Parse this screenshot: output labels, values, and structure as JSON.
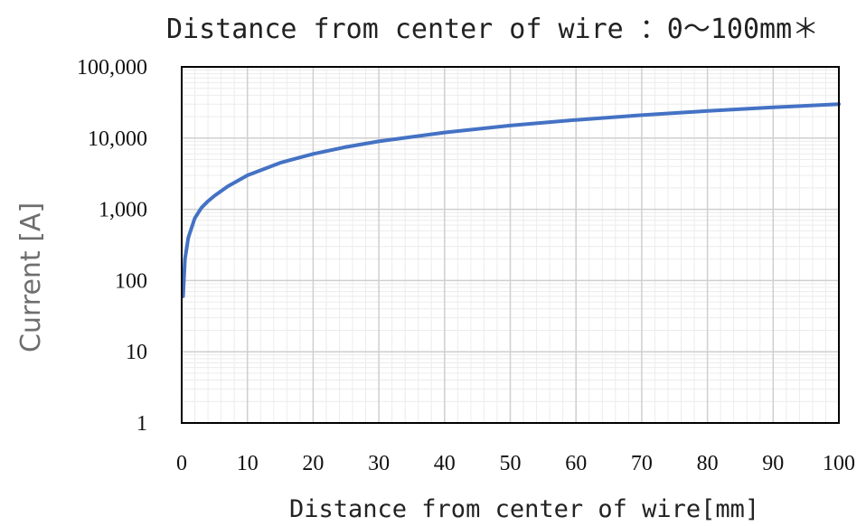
{
  "chart_data": {
    "type": "line",
    "title": "Distance from center of wire ：0〜100mm＊",
    "xlabel": "Distance from center of wire[mm]",
    "ylabel": "Current [A]",
    "xlim": [
      0,
      100
    ],
    "ylim": [
      1,
      100000
    ],
    "y_scale": "log",
    "grid": true,
    "x_ticks": [
      "0",
      "10",
      "20",
      "30",
      "40",
      "50",
      "60",
      "70",
      "80",
      "90",
      "100"
    ],
    "y_ticks": [
      "100,000",
      "10,000",
      "1,000",
      "100",
      "10",
      "1"
    ],
    "series": [
      {
        "color": "#4472C4",
        "x": [
          0.2,
          0.5,
          1,
          2,
          3,
          4,
          5,
          7,
          10,
          15,
          20,
          25,
          30,
          40,
          50,
          60,
          70,
          80,
          90,
          100
        ],
        "y": [
          60,
          200,
          400,
          750,
          1050,
          1300,
          1550,
          2100,
          3000,
          4500,
          6000,
          7500,
          9000,
          12000,
          15000,
          18000,
          21000,
          24000,
          27000,
          30000
        ]
      }
    ]
  }
}
